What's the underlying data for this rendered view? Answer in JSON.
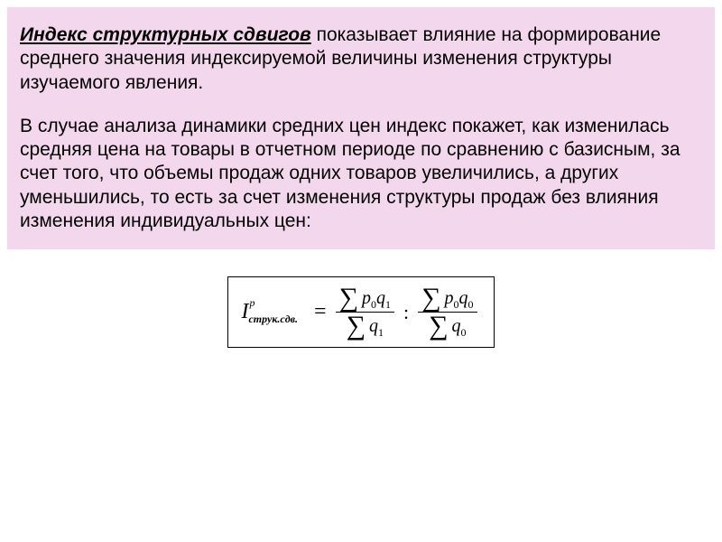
{
  "textbox": {
    "background_color": "#f3d7ed",
    "text_color": "#000000",
    "font_size_pt": 16,
    "term": "Индекс структурных сдвигов",
    "para1_rest": " показывает влияние на формирование среднего значения индексируемой величины изменения структуры изучаемого явления.",
    "para2": "В случае анализа динамики средних цен индекс покажет, как изменилась средняя цена на товары в отчетном периоде по сравнению с базисным, за счет того, что объемы продаж одних товаров увеличились, а других уменьшились, то есть за счет изменения структуры продаж без влияния изменения индивидуальных цен:"
  },
  "formula": {
    "border_color": "#000000",
    "font_family": "Times New Roman",
    "lhs_symbol": "I",
    "lhs_superscript": "p",
    "lhs_subscript": "струк.сдв.",
    "equals": "=",
    "sigma": "∑",
    "frac1_num_p": "p",
    "frac1_num_p_sub": "0",
    "frac1_num_q": "q",
    "frac1_num_q_sub": "1",
    "frac1_den_q": "q",
    "frac1_den_q_sub": "1",
    "divider": ":",
    "frac2_num_p": "p",
    "frac2_num_p_sub": "0",
    "frac2_num_q": "q",
    "frac2_num_q_sub": "0",
    "frac2_den_q": "q",
    "frac2_den_q_sub": "0"
  }
}
